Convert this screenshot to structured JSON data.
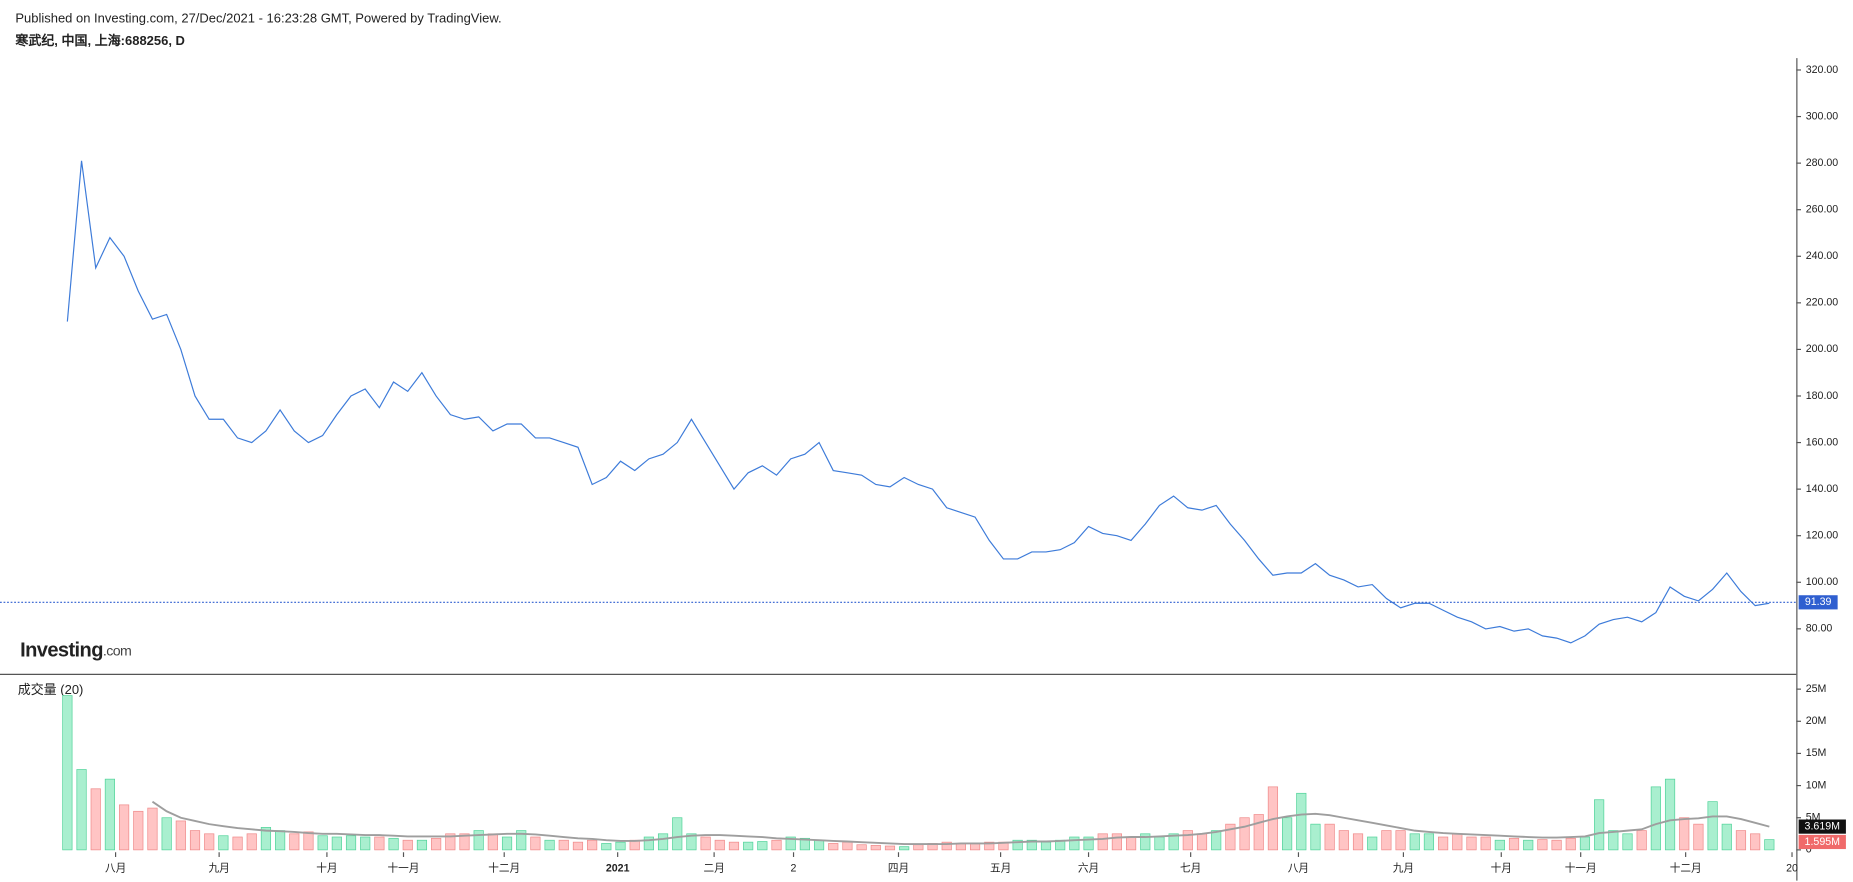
{
  "header": {
    "published": "Published on Investing.com, 27/Dec/2021 - 16:23:28 GMT, Powered by TradingView.",
    "symbol": "寒武纪, 中国, 上海:688256, D",
    "logo_main": "Investing",
    "logo_suffix": ".com"
  },
  "chart_data": [
    {
      "type": "line",
      "color": "#3d7bd9",
      "values": [
        212,
        281,
        235,
        248,
        240,
        225,
        213,
        215,
        200,
        180,
        170,
        170,
        162,
        160,
        165,
        174,
        165,
        160,
        163,
        172,
        180,
        183,
        175,
        186,
        182,
        190,
        180,
        172,
        170,
        171,
        165,
        168,
        168,
        162,
        162,
        160,
        158,
        142,
        145,
        152,
        148,
        153,
        155,
        160,
        170,
        160,
        150,
        140,
        147,
        150,
        146,
        153,
        155,
        160,
        148,
        147,
        146,
        142,
        141,
        145,
        142,
        140,
        132,
        130,
        128,
        118,
        110,
        110,
        113,
        113,
        114,
        117,
        124,
        121,
        120,
        118,
        125,
        133,
        137,
        132,
        131,
        133,
        125,
        118,
        110,
        103,
        104,
        104,
        108,
        103,
        101,
        98,
        99,
        93,
        89,
        91,
        91,
        88,
        85,
        83,
        80,
        81,
        79,
        80,
        77,
        76,
        74,
        77,
        82,
        84,
        85,
        83,
        87,
        98,
        94,
        92,
        97,
        104,
        96,
        90,
        91
      ],
      "price_line": 91.39,
      "price_line_color": "#2f5fd0",
      "ylim": [
        61.2,
        325.1
      ],
      "yticks": [
        80,
        100,
        120,
        140,
        160,
        180,
        200,
        220,
        240,
        260,
        280,
        300,
        320
      ],
      "ytick_labels": [
        "80.00",
        "100.00",
        "120.00",
        "140.00",
        "160.00",
        "180.00",
        "200.00",
        "220.00",
        "240.00",
        "260.00",
        "280.00",
        "300.00",
        "320.00"
      ]
    },
    {
      "type": "bar",
      "title": "成交量 (20)",
      "up_color": "#a9efcf",
      "down_color": "#ffc4c4",
      "ma_color": "#9e9e9e",
      "values": [
        24000000.0,
        12500000.0,
        9500000.0,
        11000000.0,
        7000000.0,
        6000000.0,
        6500000.0,
        5000000.0,
        4500000.0,
        3000000.0,
        2500000.0,
        2200000.0,
        2000000.0,
        2500000.0,
        3500000.0,
        3000000.0,
        2500000.0,
        2800000.0,
        2200000.0,
        2000000.0,
        2200000.0,
        2000000.0,
        2000000.0,
        1800000.0,
        1500000.0,
        1500000.0,
        1800000.0,
        2500000.0,
        2500000.0,
        3000000.0,
        2500000.0,
        2000000.0,
        3000000.0,
        2000000.0,
        1500000.0,
        1500000.0,
        1200000.0,
        1500000.0,
        1000000.0,
        1200000.0,
        1500000.0,
        2000000.0,
        2500000.0,
        5000000.0,
        2500000.0,
        2000000.0,
        1500000.0,
        1200000.0,
        1200000.0,
        1300000.0,
        1500000.0,
        2000000.0,
        1800000.0,
        1500000.0,
        1000000.0,
        1200000.0,
        800000.0,
        700000.0,
        600000.0,
        500000.0,
        800000.0,
        1000000.0,
        1200000.0,
        1000000.0,
        1000000.0,
        1200000.0,
        1200000.0,
        1500000.0,
        1500000.0,
        1200000.0,
        1500000.0,
        2000000.0,
        2000000.0,
        2500000.0,
        2500000.0,
        2000000.0,
        2500000.0,
        2000000.0,
        2500000.0,
        3000000.0,
        2500000.0,
        3000000.0,
        4000000.0,
        5000000.0,
        5500000.0,
        9800000.0,
        5000000.0,
        8800000.0,
        4000000.0,
        4000000.0,
        3000000.0,
        2500000.0,
        2000000.0,
        3000000.0,
        3000000.0,
        2500000.0,
        2500000.0,
        2000000.0,
        2500000.0,
        2000000.0,
        2000000.0,
        1500000.0,
        1800000.0,
        1500000.0,
        1600000.0,
        1500000.0,
        1800000.0,
        2000000.0,
        7800000.0,
        3000000.0,
        2500000.0,
        3000000.0,
        9800000.0,
        11000000.0,
        5000000.0,
        4000000.0,
        7500000.0,
        4000000.0,
        3000000.0,
        2500000.0,
        1595000.0
      ],
      "ma_values": [
        null,
        null,
        null,
        null,
        null,
        null,
        7500000.0,
        6000000.0,
        5000000.0,
        4500000.0,
        4000000.0,
        3700000.0,
        3400000.0,
        3200000.0,
        3000000.0,
        2900000.0,
        2800000.0,
        2600000.0,
        2500000.0,
        2500000.0,
        2400000.0,
        2300000.0,
        2300000.0,
        2200000.0,
        2100000.0,
        2100000.0,
        2100000.0,
        2100000.0,
        2200000.0,
        2300000.0,
        2400000.0,
        2500000.0,
        2500000.0,
        2400000.0,
        2200000.0,
        2000000.0,
        1800000.0,
        1700000.0,
        1500000.0,
        1400000.0,
        1400000.0,
        1500000.0,
        1700000.0,
        2000000.0,
        2200000.0,
        2300000.0,
        2300000.0,
        2200000.0,
        2100000.0,
        2000000.0,
        1800000.0,
        1700000.0,
        1600000.0,
        1500000.0,
        1400000.0,
        1300000.0,
        1200000.0,
        1100000.0,
        1000000.0,
        900000.0,
        900000.0,
        900000.0,
        900000.0,
        1000000.0,
        1000000.0,
        1000000.0,
        1100000.0,
        1200000.0,
        1300000.0,
        1300000.0,
        1400000.0,
        1500000.0,
        1600000.0,
        1700000.0,
        1900000.0,
        2000000.0,
        2000000.0,
        2100000.0,
        2200000.0,
        2300000.0,
        2500000.0,
        2800000.0,
        3200000.0,
        3600000.0,
        4200000.0,
        4800000.0,
        5200000.0,
        5500000.0,
        5600000.0,
        5400000.0,
        5000000.0,
        4600000.0,
        4200000.0,
        3800000.0,
        3400000.0,
        3000000.0,
        2800000.0,
        2600000.0,
        2500000.0,
        2400000.0,
        2300000.0,
        2200000.0,
        2100000.0,
        2000000.0,
        1900000.0,
        1900000.0,
        2000000.0,
        2100000.0,
        2600000.0,
        2800000.0,
        3000000.0,
        3200000.0,
        4000000.0,
        4600000.0,
        4800000.0,
        4900000.0,
        5200000.0,
        5200000.0,
        4800000.0,
        4200000.0,
        3619000.0
      ],
      "last_value_label": "1.595M",
      "ma_last_label": "3.619M",
      "ylim": [
        -370000.0,
        27200000.0
      ],
      "yticks": [
        0,
        {
          "value": 5000000.0,
          "label": "5M"
        },
        {
          "value": 10000000.0,
          "label": "10M"
        },
        {
          "value": 15000000.0,
          "label": "15M"
        },
        {
          "value": 20000000.0,
          "label": "20M"
        },
        {
          "value": 25000000.0,
          "label": "25M"
        }
      ],
      "xlim": [
        -4.75,
        121.9
      ],
      "xticks": [
        {
          "value": 3.4,
          "label": "八月"
        },
        {
          "value": 10.7,
          "label": "九月"
        },
        {
          "value": 18.3,
          "label": "十月"
        },
        {
          "value": 23.7,
          "label": "十一月"
        },
        {
          "value": 30.8,
          "label": "十二月"
        },
        {
          "value": 38.8,
          "label": "2021"
        },
        {
          "value": 45.6,
          "label": "二月"
        },
        {
          "value": 51.2,
          "label": "2"
        },
        {
          "value": 58.6,
          "label": "四月"
        },
        {
          "value": 65.8,
          "label": "五月"
        },
        {
          "value": 72,
          "label": "六月"
        },
        {
          "value": 79.2,
          "label": "七月"
        },
        {
          "value": 86.8,
          "label": "八月"
        },
        {
          "value": 94.2,
          "label": "九月"
        },
        {
          "value": 101.1,
          "label": "十月"
        },
        {
          "value": 106.7,
          "label": "十一月"
        },
        {
          "value": 114.1,
          "label": "十二月"
        },
        {
          "value": 121.6,
          "label": "20"
        }
      ]
    }
  ]
}
